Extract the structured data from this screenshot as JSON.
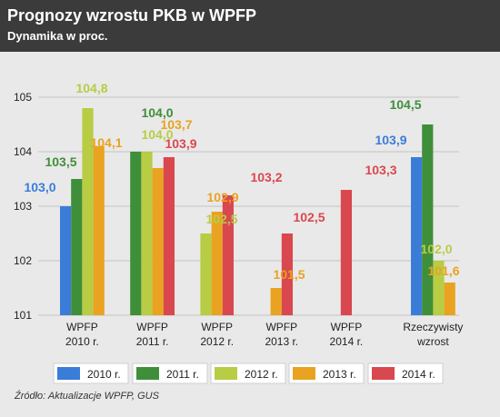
{
  "title": "Prognozy wzrostu PKB w WPFP",
  "subtitle": "Dynamika w proc.",
  "source": "Źródło: Aktualizacje WPFP, GUS",
  "chart_data": {
    "type": "bar",
    "categories": [
      [
        "WPFP",
        "2010 r."
      ],
      [
        "WPFP",
        "2011 r."
      ],
      [
        "WPFP",
        "2012 r."
      ],
      [
        "WPFP",
        "2013 r."
      ],
      [
        "WPFP",
        "2014 r."
      ],
      [
        "Rzeczywisty",
        "wzrost"
      ]
    ],
    "series": [
      {
        "name": "2010 r.",
        "color": "#3a7dd8",
        "values": [
          103.0,
          null,
          null,
          null,
          null,
          103.9
        ],
        "labels": [
          "103,0",
          null,
          null,
          null,
          null,
          "103,9"
        ]
      },
      {
        "name": "2011 r.",
        "color": "#3f8f3a",
        "values": [
          103.5,
          104.0,
          null,
          null,
          null,
          104.5
        ],
        "labels": [
          "103,5",
          "104,0",
          null,
          null,
          null,
          "104,5"
        ]
      },
      {
        "name": "2012 r.",
        "color": "#b8cc44",
        "values": [
          104.8,
          104.0,
          102.5,
          null,
          null,
          102.0
        ],
        "labels": [
          "104,8",
          "104,0",
          "102,5",
          null,
          null,
          "102,0"
        ]
      },
      {
        "name": "2013 r.",
        "color": "#e9a321",
        "values": [
          104.1,
          103.7,
          102.9,
          101.5,
          null,
          101.6
        ],
        "labels": [
          "104,1",
          "103,7",
          "102,9",
          "101,5",
          null,
          "101,6"
        ]
      },
      {
        "name": "2014 r.",
        "color": "#d9484e",
        "values": [
          null,
          103.9,
          103.2,
          102.5,
          103.3,
          null
        ],
        "labels": [
          null,
          "103,9",
          "103,2",
          "102,5",
          "103,3",
          null
        ]
      }
    ],
    "yticks": [
      "101",
      "102",
      "103",
      "104",
      "105"
    ],
    "ylim": [
      101,
      105.3
    ],
    "grid": true,
    "legend": "bottom"
  }
}
